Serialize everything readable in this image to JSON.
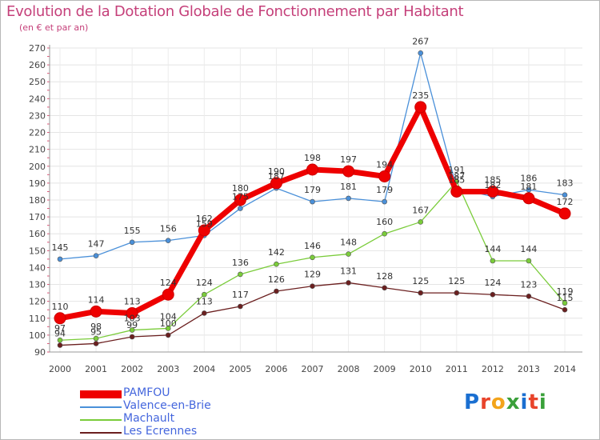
{
  "header": {
    "title": "Evolution de la Dotation Globale de Fonctionnement par Habitant",
    "subtitle": "(en € et par an)"
  },
  "logo": {
    "text": "Proxiti",
    "colors": [
      "#1a6fd1",
      "#e8442b",
      "#f3a41b",
      "#3aa03a",
      "#1a6fd1",
      "#e8442b",
      "#3aa03a"
    ]
  },
  "chart_data": {
    "type": "line",
    "title": "Evolution de la Dotation Globale de Fonctionnement par Habitant",
    "subtitle": "(en € et par an)",
    "x": [
      "2000",
      "2001",
      "2002",
      "2003",
      "2004",
      "2005",
      "2006",
      "2007",
      "2008",
      "2009",
      "2010",
      "2011",
      "2012",
      "2013",
      "2014"
    ],
    "ylim": [
      90,
      270
    ],
    "yticks": [
      90,
      100,
      110,
      120,
      130,
      140,
      150,
      160,
      170,
      180,
      190,
      200,
      210,
      220,
      230,
      240,
      250,
      260,
      270
    ],
    "grid": true,
    "legend_position": "bottom-left",
    "series": [
      {
        "name": "PAMFOU",
        "color": "#ee0000",
        "values": [
          110,
          114,
          113,
          124,
          162,
          180,
          190,
          198,
          197,
          194,
          235,
          185,
          185,
          181,
          172
        ]
      },
      {
        "name": "Valence-en-Brie",
        "color": "#4a90d9",
        "values": [
          145,
          147,
          155,
          156,
          159,
          175,
          187,
          179,
          181,
          179,
          267,
          187,
          182,
          186,
          183
        ]
      },
      {
        "name": "Machault",
        "color": "#7acc3a",
        "values": [
          97,
          98,
          103,
          104,
          124,
          136,
          142,
          146,
          148,
          160,
          167,
          191,
          144,
          144,
          119
        ]
      },
      {
        "name": "Les Ecrennes",
        "color": "#6b1f1f",
        "values": [
          94,
          95,
          99,
          100,
          113,
          117,
          126,
          129,
          131,
          128,
          125,
          125,
          124,
          123,
          115
        ]
      }
    ]
  }
}
